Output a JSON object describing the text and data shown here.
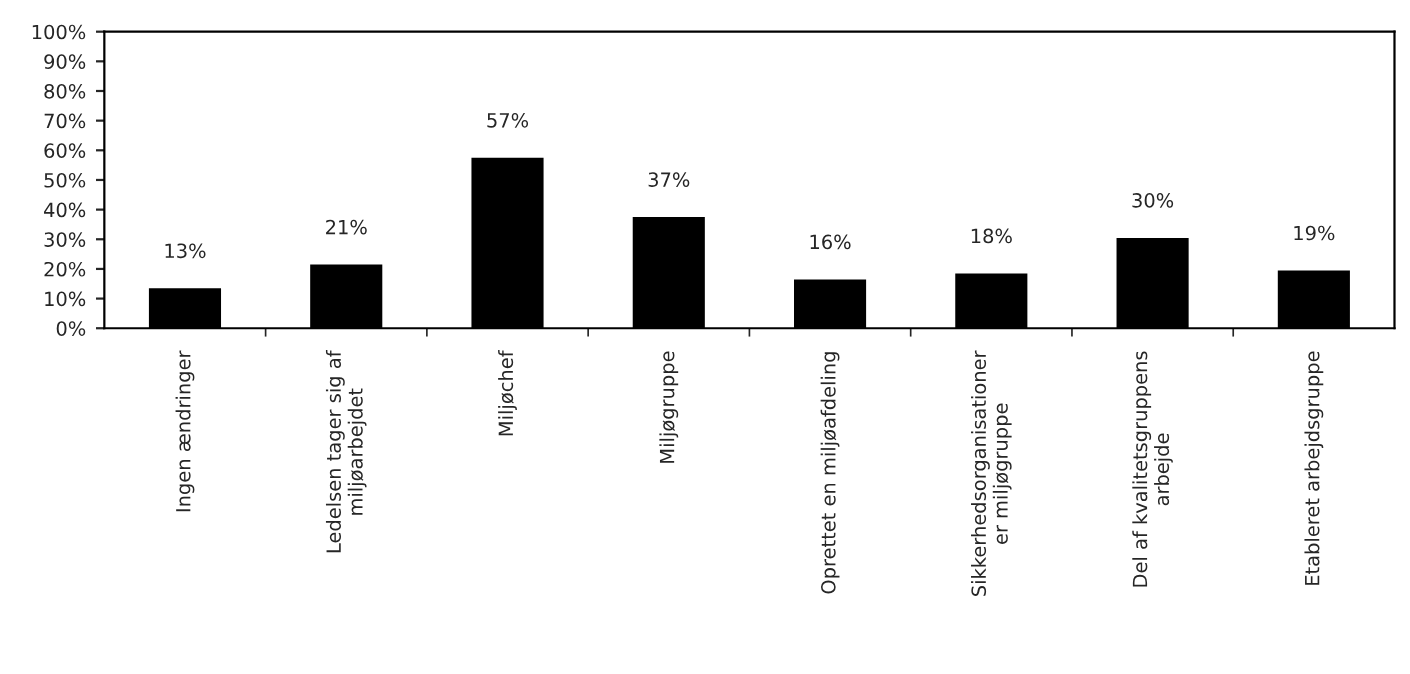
{
  "chart_data": {
    "type": "bar",
    "categories": [
      "Ingen ændringer",
      "Ledelsen tager sig af\nmiljøarbejdet",
      "Miljøchef",
      "Miljøgruppe",
      "Oprettet en miljøafdeling",
      "Sikkerhedsorganisationer\ner miljøgruppe",
      "Del af kvalitetsgruppens\narbejde",
      "Etableret arbejdsgruppe"
    ],
    "values": [
      13,
      21,
      57,
      37,
      16,
      18,
      30,
      19
    ],
    "value_labels": [
      "13%",
      "21%",
      "57%",
      "37%",
      "16%",
      "18%",
      "30%",
      "19%"
    ],
    "color": "#000000",
    "ylim": [
      0,
      100
    ],
    "yticks": [
      {
        "value": 0,
        "label": "0%"
      },
      {
        "value": 10,
        "label": "10%"
      },
      {
        "value": 20,
        "label": "20%"
      },
      {
        "value": 30,
        "label": "30%"
      },
      {
        "value": 40,
        "label": "40%"
      },
      {
        "value": 50,
        "label": "50%"
      },
      {
        "value": 60,
        "label": "60%"
      },
      {
        "value": 70,
        "label": "70%"
      },
      {
        "value": 80,
        "label": "80%"
      },
      {
        "value": 90,
        "label": "90%"
      },
      {
        "value": 100,
        "label": "100%"
      }
    ],
    "grid": false,
    "legend": false
  }
}
